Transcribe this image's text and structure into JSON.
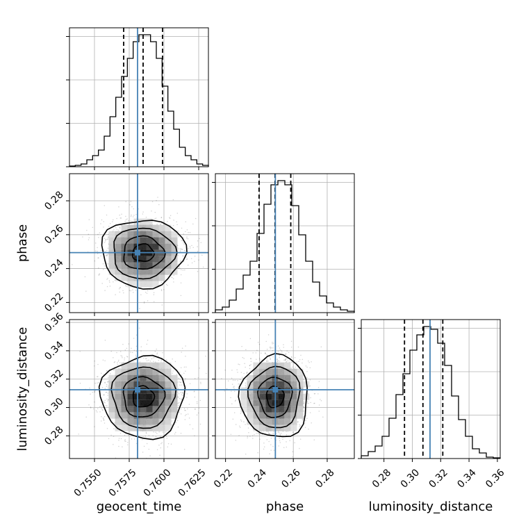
{
  "chart_data": {
    "type": "corner",
    "parameters": [
      "geocent_time",
      "phase",
      "luminosity_distance"
    ],
    "truths": [
      0.7581,
      0.2494,
      0.3125
    ],
    "grid": true,
    "colors": {
      "truth": "#4682b4",
      "hist": "#000000",
      "quantile": "#000000",
      "points": "#000000"
    },
    "axes": {
      "geocent_time": {
        "range": [
          0.7532,
          0.7632
        ],
        "ticks": [
          "0.7550",
          "0.7575",
          "0.7600",
          "0.7625"
        ],
        "tick_values": [
          0.755,
          0.7575,
          0.76,
          0.7625
        ],
        "quantiles": [
          0.7571,
          0.7585,
          0.7599
        ]
      },
      "phase": {
        "range": [
          0.214,
          0.296
        ],
        "ticks": [
          "0.22",
          "0.24",
          "0.26",
          "0.28"
        ],
        "tick_values": [
          0.22,
          0.24,
          0.26,
          0.28
        ],
        "quantiles": [
          0.2398,
          0.2492,
          0.2585
        ]
      },
      "luminosity_distance": {
        "range": [
          0.264,
          0.362
        ],
        "ticks": [
          "0.28",
          "0.30",
          "0.32",
          "0.34",
          "0.36"
        ],
        "tick_values": [
          0.28,
          0.3,
          0.32,
          0.34,
          0.36
        ],
        "quantiles": [
          0.2945,
          0.3075,
          0.3215
        ]
      }
    },
    "histograms": {
      "geocent_time": [
        0.005,
        0.01,
        0.02,
        0.05,
        0.08,
        0.12,
        0.22,
        0.36,
        0.5,
        0.65,
        0.78,
        0.9,
        0.95,
        0.95,
        0.9,
        0.78,
        0.58,
        0.4,
        0.27,
        0.14,
        0.08,
        0.05,
        0.02,
        0.01
      ],
      "phase": [
        0.02,
        0.04,
        0.09,
        0.17,
        0.27,
        0.37,
        0.57,
        0.78,
        0.92,
        0.95,
        0.92,
        0.77,
        0.56,
        0.37,
        0.22,
        0.12,
        0.07,
        0.04,
        0.02,
        0.01
      ],
      "luminosity_distance": [
        0.02,
        0.05,
        0.09,
        0.16,
        0.29,
        0.46,
        0.61,
        0.78,
        0.89,
        0.95,
        0.93,
        0.83,
        0.67,
        0.45,
        0.28,
        0.16,
        0.07,
        0.04,
        0.01,
        0.005
      ]
    }
  }
}
